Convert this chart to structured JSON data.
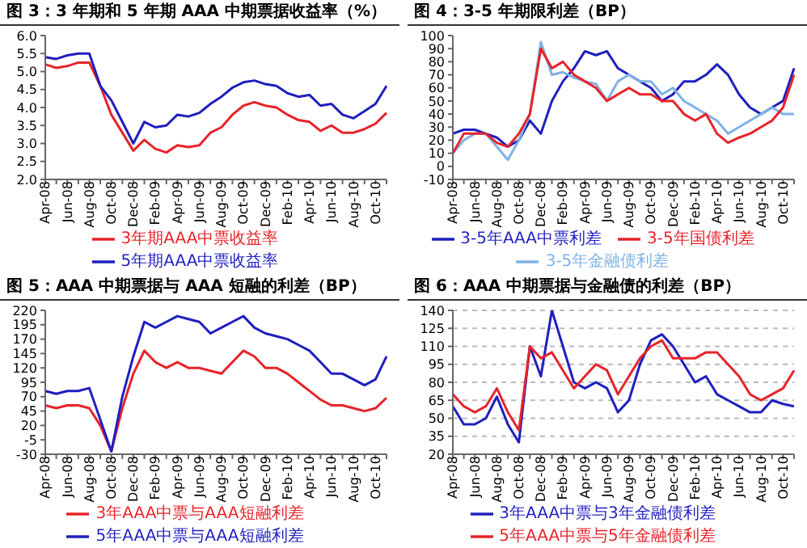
{
  "chart_data": [
    {
      "type": "line",
      "title": "图 3：3 年期和 5 年期 AAA 中期票据收益率（%）",
      "categories": [
        "Apr-08",
        null,
        "Jun-08",
        null,
        "Aug-08",
        null,
        "Oct-08",
        null,
        "Dec-08",
        null,
        "Feb-09",
        null,
        "Apr-09",
        null,
        "Jun-09",
        null,
        "Aug-09",
        null,
        "Oct-09",
        null,
        "Dec-09",
        null,
        "Feb-10",
        null,
        "Apr-10",
        null,
        "Jun-10",
        null,
        "Aug-10",
        null,
        "Oct-10",
        null
      ],
      "ylim": [
        2,
        6
      ],
      "yticks": [
        {
          "value": 2,
          "label": "2.0"
        },
        2.5,
        {
          "value": 3,
          "label": "3.0"
        },
        3.5,
        {
          "value": 4,
          "label": "4.0"
        },
        4.5,
        {
          "value": 5,
          "label": "5.0"
        },
        5.5,
        {
          "value": 6,
          "label": "6.0"
        }
      ],
      "grid": false,
      "legend": "bottom",
      "series": [
        {
          "name": "3年期AAA中票收益率",
          "color": "#e8232a",
          "values": [
            5.2,
            5.1,
            5.15,
            5.25,
            5.25,
            4.6,
            3.8,
            3.3,
            2.8,
            3.1,
            2.85,
            2.75,
            2.95,
            2.9,
            2.95,
            3.3,
            3.45,
            3.8,
            4.05,
            4.15,
            4.05,
            4.0,
            3.8,
            3.65,
            3.6,
            3.35,
            3.5,
            3.3,
            3.3,
            3.4,
            3.55,
            3.85
          ]
        },
        {
          "name": "5年期AAA中票收益率",
          "color": "#1f1fbf",
          "values": [
            5.4,
            5.35,
            5.45,
            5.5,
            5.5,
            4.6,
            4.2,
            3.6,
            3.0,
            3.6,
            3.45,
            3.5,
            3.8,
            3.75,
            3.85,
            4.1,
            4.3,
            4.55,
            4.7,
            4.75,
            4.65,
            4.6,
            4.4,
            4.3,
            4.35,
            4.05,
            4.1,
            3.8,
            3.7,
            3.9,
            4.1,
            4.6
          ]
        }
      ]
    },
    {
      "type": "line",
      "title": "图 4：3-5 年期限利差（BP）",
      "categories": [
        "Apr-08",
        null,
        "Jun-08",
        null,
        "Aug-08",
        null,
        "Oct-08",
        null,
        "Dec-08",
        null,
        "Feb-09",
        null,
        "Apr-09",
        null,
        "Jun-09",
        null,
        "Aug-09",
        null,
        "Oct-09",
        null,
        "Dec-09",
        null,
        "Feb-10",
        null,
        "Apr-10",
        null,
        "Jun-10",
        null,
        "Aug-10",
        null,
        "Oct-10",
        null
      ],
      "ylim": [
        -10,
        100
      ],
      "yticks": [
        -10,
        0,
        10,
        20,
        30,
        40,
        50,
        60,
        70,
        80,
        90,
        100
      ],
      "grid": false,
      "legend": "bottom",
      "series": [
        {
          "name": "3-5年AAA中票利差",
          "color": "#1f1fbf",
          "values": [
            25,
            28,
            28,
            25,
            22,
            15,
            20,
            35,
            25,
            50,
            65,
            75,
            88,
            85,
            88,
            75,
            70,
            65,
            60,
            50,
            55,
            65,
            65,
            70,
            78,
            70,
            55,
            45,
            40,
            45,
            50,
            75
          ]
        },
        {
          "name": "3-5年金融债利差",
          "color": "#7fb2e6",
          "values": [
            10,
            20,
            25,
            25,
            15,
            5,
            20,
            40,
            95,
            70,
            72,
            68,
            65,
            63,
            50,
            65,
            70,
            65,
            65,
            55,
            60,
            50,
            45,
            40,
            35,
            25,
            30,
            35,
            40,
            45,
            40,
            40
          ]
        },
        {
          "name": "3-5年国债利差",
          "color": "#e8232a",
          "values": [
            10,
            25,
            25,
            25,
            18,
            15,
            25,
            40,
            90,
            75,
            80,
            70,
            65,
            60,
            50,
            55,
            60,
            55,
            55,
            50,
            50,
            40,
            35,
            40,
            25,
            18,
            22,
            25,
            30,
            35,
            45,
            70
          ]
        }
      ]
    },
    {
      "type": "line",
      "title": "图 5：AAA 中期票据与 AAA 短融的利差（BP）",
      "categories": [
        "Apr-08",
        null,
        "Jun-08",
        null,
        "Aug-08",
        null,
        "Oct-08",
        null,
        "Dec-08",
        null,
        "Feb-09",
        null,
        "Apr-09",
        null,
        "Jun-09",
        null,
        "Aug-09",
        null,
        "Oct-09",
        null,
        "Dec-09",
        null,
        "Feb-10",
        null,
        "Apr-10",
        null,
        "Jun-10",
        null,
        "Aug-10",
        null,
        "Oct-10",
        null
      ],
      "ylim": [
        -30,
        220
      ],
      "yticks": [
        -30,
        -5,
        20,
        45,
        70,
        95,
        120,
        145,
        170,
        195,
        220
      ],
      "grid": false,
      "legend": "bottom",
      "series": [
        {
          "name": "3年AAA中票与AAA短融利差",
          "color": "#e8232a",
          "values": [
            55,
            50,
            55,
            55,
            50,
            20,
            -25,
            50,
            110,
            150,
            130,
            120,
            130,
            120,
            120,
            115,
            110,
            130,
            150,
            140,
            120,
            120,
            110,
            95,
            80,
            65,
            55,
            55,
            50,
            45,
            50,
            68
          ]
        },
        {
          "name": "5年AAA中票与AAA短融利差",
          "color": "#1f1fbf",
          "values": [
            80,
            75,
            80,
            80,
            85,
            30,
            -25,
            70,
            140,
            200,
            190,
            200,
            210,
            205,
            200,
            180,
            190,
            200,
            210,
            190,
            180,
            175,
            170,
            160,
            150,
            130,
            110,
            110,
            100,
            90,
            100,
            140
          ]
        }
      ]
    },
    {
      "type": "line",
      "title": "图 6：AAA 中期票据与金融债的利差（BP）",
      "categories": [
        "Apr-08",
        null,
        "Jun-08",
        null,
        "Aug-08",
        null,
        "Oct-08",
        null,
        "Dec-08",
        null,
        "Feb-09",
        null,
        "Apr-09",
        null,
        "Jun-09",
        null,
        "Aug-09",
        null,
        "Oct-09",
        null,
        "Dec-09",
        null,
        "Feb-10",
        null,
        "Apr-10",
        null,
        "Jun-10",
        null,
        "Aug-10",
        null,
        "Oct-10",
        null
      ],
      "ylim": [
        20,
        140
      ],
      "yticks": [
        20,
        35,
        50,
        65,
        80,
        95,
        110,
        125,
        140
      ],
      "grid": "y",
      "legend": "bottom",
      "series": [
        {
          "name": "3年AAA中票与3年金融债利差",
          "color": "#1f1fbf",
          "values": [
            60,
            45,
            45,
            50,
            68,
            45,
            30,
            110,
            85,
            140,
            110,
            80,
            75,
            80,
            75,
            55,
            65,
            95,
            115,
            120,
            110,
            95,
            80,
            85,
            70,
            65,
            60,
            55,
            55,
            65,
            62,
            60
          ]
        },
        {
          "name": "5年AAA中票与5年金融债利差",
          "color": "#e8232a",
          "values": [
            70,
            60,
            55,
            60,
            75,
            55,
            40,
            110,
            100,
            105,
            90,
            75,
            85,
            95,
            90,
            70,
            85,
            100,
            110,
            115,
            100,
            100,
            100,
            105,
            105,
            95,
            85,
            70,
            65,
            70,
            75,
            90
          ]
        }
      ]
    }
  ]
}
